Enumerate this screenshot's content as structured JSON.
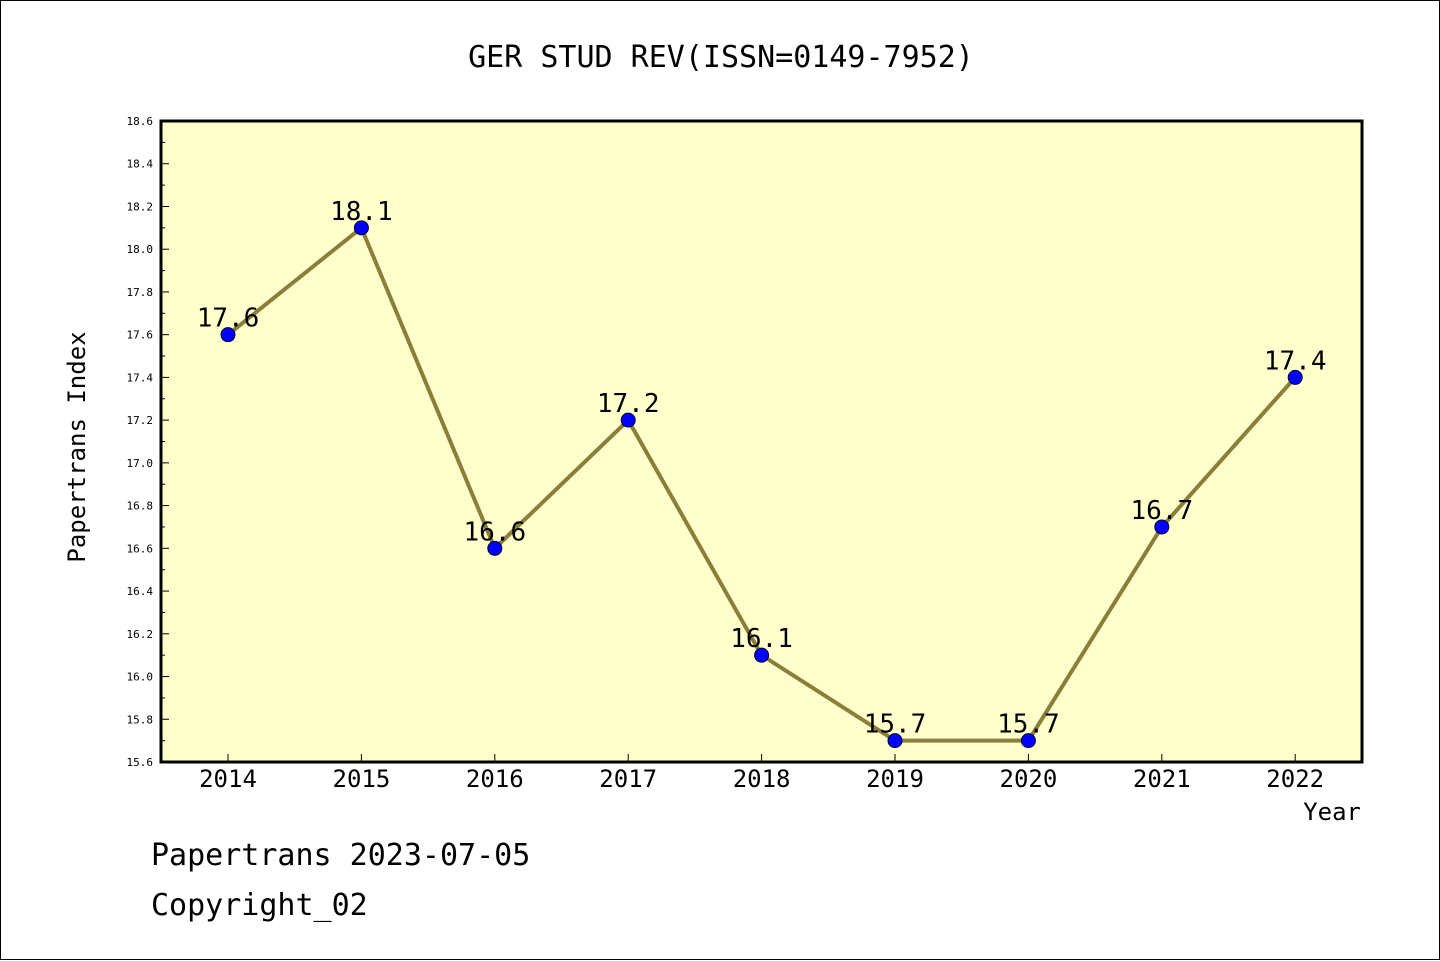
{
  "footer": {
    "line1": "Papertrans 2023-07-05",
    "line2": "Copyright_02"
  },
  "chart_data": {
    "type": "line",
    "title": "GER STUD REV(ISSN=0149-7952)",
    "xlabel": "Year",
    "ylabel": "Papertrans Index",
    "categories": [
      "2014",
      "2015",
      "2016",
      "2017",
      "2018",
      "2019",
      "2020",
      "2021",
      "2022"
    ],
    "values": [
      17.6,
      18.1,
      16.6,
      17.2,
      16.1,
      15.7,
      15.7,
      16.7,
      17.4
    ],
    "data_labels": [
      "17.6",
      "18.1",
      "16.6",
      "17.2",
      "16.1",
      "15.7",
      "15.7",
      "16.7",
      "17.4"
    ],
    "ylim": [
      15.6,
      18.6
    ],
    "yticks": [
      "15.6",
      "15.8",
      "16.0",
      "16.2",
      "16.4",
      "16.6",
      "16.8",
      "17.0",
      "17.2",
      "17.4",
      "17.6",
      "17.8",
      "18.0",
      "18.2",
      "18.4",
      "18.6"
    ],
    "grid": false,
    "colors": {
      "plot_background": "#ffffcc",
      "line": "#8b7d3a",
      "marker": "#0000ff"
    }
  }
}
